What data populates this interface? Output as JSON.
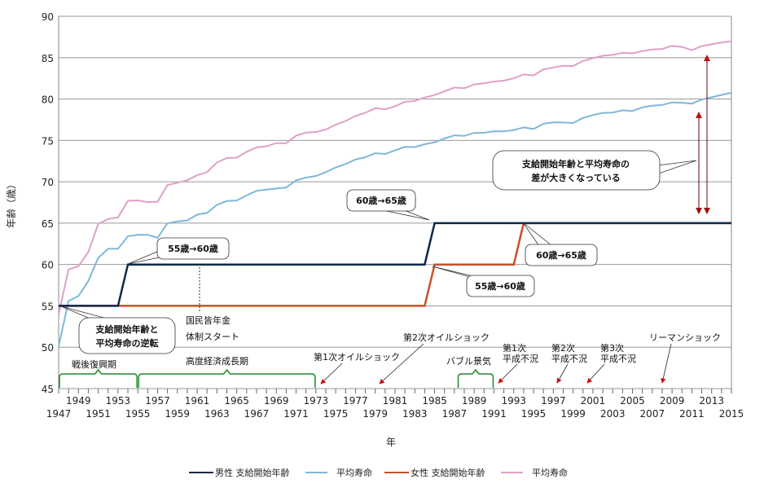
{
  "chart_data": {
    "type": "line",
    "title": "",
    "xlabel": "年",
    "ylabel": "年齢（歳）",
    "xlim": [
      1947,
      2015
    ],
    "ylim": [
      45,
      90
    ],
    "yticks": [
      45,
      50,
      55,
      60,
      65,
      70,
      75,
      80,
      85,
      90
    ],
    "xticks_upper": [
      1949,
      1953,
      1957,
      1961,
      1965,
      1969,
      1973,
      1977,
      1981,
      1985,
      1989,
      1993,
      1997,
      2001,
      2005,
      2009,
      2013
    ],
    "xticks_lower": [
      1947,
      1951,
      1955,
      1959,
      1963,
      1967,
      1971,
      1975,
      1979,
      1983,
      1987,
      1991,
      1995,
      1999,
      2003,
      2007,
      2011,
      2015
    ],
    "grid": true,
    "legend_position": "bottom",
    "series": [
      {
        "name": "男性 支給開始年齢",
        "color": "#0d2a4a",
        "points": [
          [
            1947,
            55
          ],
          [
            1953,
            55
          ],
          [
            1954,
            60
          ],
          [
            1984,
            60
          ],
          [
            1985,
            65
          ],
          [
            2015,
            65
          ]
        ]
      },
      {
        "name": "平均寿命",
        "color": "#7fb8d8",
        "x_start": 1947,
        "values": [
          50.06,
          55.6,
          56.2,
          58.0,
          60.8,
          61.9,
          61.9,
          63.41,
          63.6,
          63.59,
          63.24,
          64.98,
          65.21,
          65.32,
          66.03,
          66.23,
          67.21,
          67.67,
          67.74,
          68.35,
          68.91,
          69.05,
          69.18,
          69.31,
          70.17,
          70.5,
          70.7,
          71.16,
          71.73,
          72.15,
          72.69,
          72.97,
          73.46,
          73.35,
          73.79,
          74.22,
          74.2,
          74.54,
          74.78,
          75.23,
          75.61,
          75.54,
          75.91,
          75.92,
          76.11,
          76.09,
          76.25,
          76.57,
          76.38,
          77.01,
          77.19,
          77.16,
          77.1,
          77.72,
          78.07,
          78.32,
          78.36,
          78.64,
          78.56,
          79.0,
          79.19,
          79.29,
          79.59,
          79.55,
          79.44,
          79.94,
          80.21,
          80.5,
          80.75
        ]
      },
      {
        "name": "女性 支給開始年齢",
        "color": "#c8502a",
        "points": [
          [
            1947,
            55
          ],
          [
            1984,
            55
          ],
          [
            1985,
            60
          ],
          [
            1993,
            60
          ],
          [
            1994,
            65
          ],
          [
            2015,
            65
          ]
        ]
      },
      {
        "name": "平均寿命",
        "color": "#e0a0c8",
        "x_start": 1947,
        "values": [
          53.96,
          59.4,
          59.8,
          61.5,
          64.9,
          65.5,
          65.7,
          67.69,
          67.75,
          67.54,
          67.6,
          69.61,
          69.88,
          70.19,
          70.79,
          71.16,
          72.34,
          72.87,
          72.92,
          73.61,
          74.15,
          74.3,
          74.67,
          74.66,
          75.58,
          75.94,
          76.02,
          76.31,
          76.89,
          77.35,
          77.95,
          78.33,
          78.89,
          78.76,
          79.13,
          79.66,
          79.78,
          80.18,
          80.48,
          80.93,
          81.39,
          81.3,
          81.77,
          81.9,
          82.11,
          82.22,
          82.51,
          82.98,
          82.85,
          83.59,
          83.82,
          84.01,
          83.99,
          84.6,
          84.93,
          85.23,
          85.33,
          85.59,
          85.52,
          85.81,
          85.99,
          86.05,
          86.44,
          86.3,
          85.9,
          86.41,
          86.61,
          86.83,
          86.99
        ]
      }
    ],
    "callouts": {
      "male_55_60": "55歳→60歳",
      "male_60_65": "60歳→65歳",
      "female_55_60": "55歳→60歳",
      "female_60_65": "60歳→65歳",
      "gap_line1": "支給開始年齢と平均寿命の",
      "gap_line2": "差が大きくなっている",
      "reversal_line1": "支給開始年齢と",
      "reversal_line2": "平均寿命の逆転"
    },
    "annotations": {
      "pension_line1": "国民皆年金",
      "pension_line2": "体制スタート",
      "postwar": "戦後復興期",
      "high_growth": "高度経済成長期",
      "bubble": "バブル景気",
      "oil1": "第1次オイルショック",
      "oil2": "第2次オイルショック",
      "heisei1_a": "第1次",
      "heisei1_b": "平成不況",
      "heisei2_a": "第2次",
      "heisei2_b": "平成不況",
      "heisei3_a": "第3次",
      "heisei3_b": "平成不況",
      "lehman": "リーマンショック"
    },
    "colors": {
      "bracket": "#1f8a2a",
      "arrow": "#cc1111",
      "gap_arrow": "#8b1010",
      "grid": "#999999"
    }
  }
}
